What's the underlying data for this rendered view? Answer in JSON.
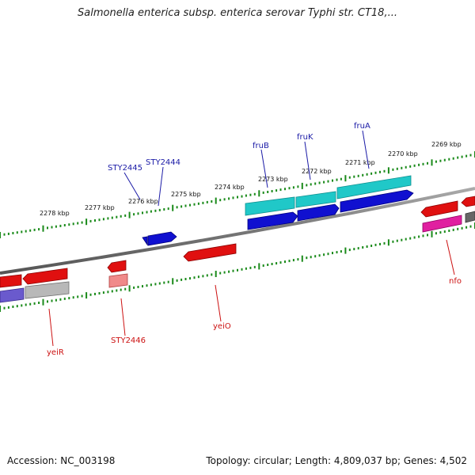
{
  "title": "Salmonella enterica subsp. enterica serovar Typhi str. CT18,...",
  "footer": {
    "accession": "Accession: NC_003198",
    "topology": "Topology: circular; Length: 4,809,037 bp; Genes: 4,502"
  },
  "ticks": [
    "2278 kbp",
    "2277 kbp",
    "2276 kbp",
    "2275 kbp",
    "2274 kbp",
    "2273 kbp",
    "2272 kbp",
    "2271 kbp",
    "2270 kbp",
    "2269 kbp"
  ],
  "genes_top": [
    "STY2445",
    "STY2444",
    "fruB",
    "fruK",
    "fruA"
  ],
  "genes_bottom": [
    "yeiR",
    "STY2446",
    "yeiO",
    "nfo"
  ],
  "colors": {
    "red": "#e01010",
    "blue": "#1010d0",
    "cyan": "#20c8c8",
    "magenta": "#e020a0",
    "purple": "#6a5acd",
    "gray": "#b0b0b0",
    "backbone": "#777777",
    "tick": "#1a8a1a",
    "top_label": "#1a1aa6",
    "bottom_label": "#cc1111"
  }
}
